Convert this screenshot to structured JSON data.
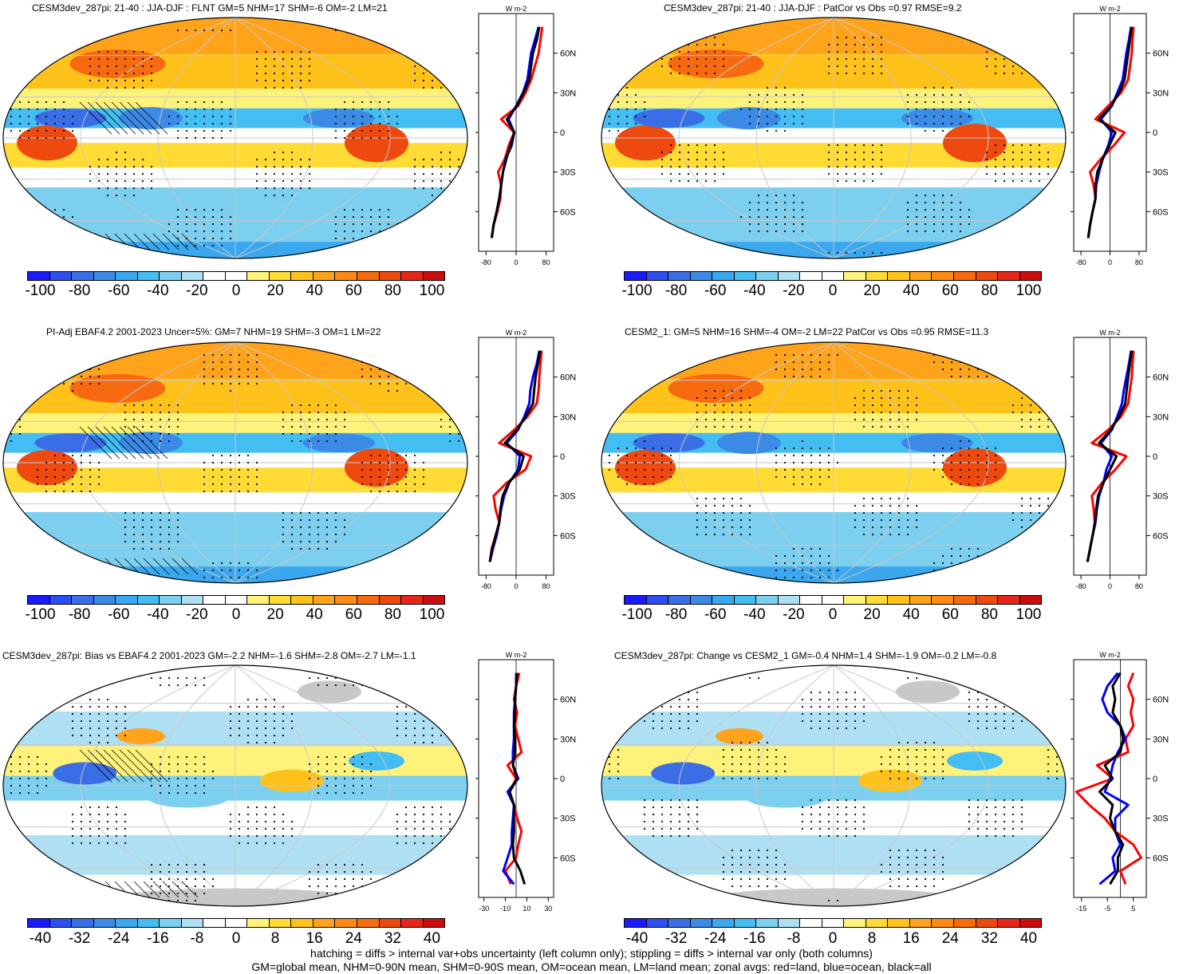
{
  "colors": {
    "diverging_full": [
      "#1a1aff",
      "#2d4ef0",
      "#3a6ee6",
      "#3b8be6",
      "#3aa7ee",
      "#44bdf3",
      "#7ccfee",
      "#aedff2",
      "#ffffff",
      "#ffffff",
      "#fff27a",
      "#ffdb33",
      "#ffc21a",
      "#ffa31a",
      "#ff8a14",
      "#f76a10",
      "#ee4a10",
      "#e6261a",
      "#cc0d0d"
    ],
    "diverging_diff": [
      "#1a1aff",
      "#2d4ef0",
      "#3a6ee6",
      "#3b8be6",
      "#3aa7ee",
      "#44bdf3",
      "#7ccfee",
      "#aedff2",
      "#ffffff",
      "#ffffff",
      "#fff27a",
      "#ffdb33",
      "#ffc21a",
      "#ffa31a",
      "#ff8a14",
      "#f76a10",
      "#ee4a10",
      "#e6261a",
      "#cc0d0d"
    ],
    "land_mask_gray": "#c8c8c8",
    "zonal_land": "#ff0000",
    "zonal_ocean": "#0000ff",
    "zonal_all": "#000000"
  },
  "panels": [
    {
      "id": "p1",
      "title": "CESM3dev_287pi: 21-40 : JJA-DJF : FLNT GM=5 NHM=17 SHM=-6 OM=-2 LM=21",
      "colorbar_labels": [
        "-100",
        "-80",
        "-60",
        "-40",
        "-20",
        "0",
        "20",
        "40",
        "60",
        "80",
        "100"
      ],
      "zonal_unit": "W m-2",
      "zonal_xticks": [
        "-80",
        "0",
        "80"
      ],
      "zonal_yticks": [
        "60N",
        "30N",
        "0",
        "30S",
        "60S"
      ],
      "hatching": true
    },
    {
      "id": "p2",
      "title": "CESM3dev_287pi: 21-40 : JJA-DJF : PatCor vs Obs =0.97 RMSE=9.2",
      "colorbar_labels": [
        "-100",
        "-80",
        "-60",
        "-40",
        "-20",
        "0",
        "20",
        "40",
        "60",
        "80",
        "100"
      ],
      "zonal_unit": "W m-2",
      "zonal_xticks": [
        "-80",
        "0",
        "80"
      ],
      "zonal_yticks": [
        "60N",
        "30N",
        "0",
        "30S",
        "60S"
      ],
      "hatching": false
    },
    {
      "id": "p3",
      "title": "PI-Adj EBAF4.2 2001-2023 Uncer=5%: GM=7 NHM=19 SHM=-3 OM=1 LM=22",
      "colorbar_labels": [
        "-100",
        "-80",
        "-60",
        "-40",
        "-20",
        "0",
        "20",
        "40",
        "60",
        "80",
        "100"
      ],
      "zonal_unit": "W m-2",
      "zonal_xticks": [
        "-80",
        "0",
        "80"
      ],
      "zonal_yticks": [
        "60N",
        "30N",
        "0",
        "30S",
        "60S"
      ],
      "hatching": true
    },
    {
      "id": "p4",
      "title": "CESM2_1: GM=5 NHM=16 SHM=-4 OM=-2 LM=22 PatCor vs Obs =0.95 RMSE=11.3",
      "colorbar_labels": [
        "-100",
        "-80",
        "-60",
        "-40",
        "-20",
        "0",
        "20",
        "40",
        "60",
        "80",
        "100"
      ],
      "zonal_unit": "W m-2",
      "zonal_xticks": [
        "-80",
        "0",
        "80"
      ],
      "zonal_yticks": [
        "60N",
        "30N",
        "0",
        "30S",
        "60S"
      ],
      "hatching": false
    },
    {
      "id": "p5",
      "title": "CESM3dev_287pi: Bias vs EBAF4.2 2001-2023 GM=-2.2 NHM=-1.6 SHM=-2.8 OM=-2.7 LM=-1.1",
      "colorbar_labels": [
        "-40",
        "-32",
        "-24",
        "-16",
        "-8",
        "0",
        "8",
        "16",
        "24",
        "32",
        "40"
      ],
      "zonal_unit": "W m-2",
      "zonal_xticks": [
        "-30",
        "-10",
        "10",
        "30"
      ],
      "zonal_yticks": [
        "60N",
        "30N",
        "0",
        "30S",
        "60S"
      ],
      "hatching": true
    },
    {
      "id": "p6",
      "title": "CESM3dev_287pi: Change vs CESM2_1 GM=-0.4 NHM=1.4 SHM=-1.9 OM=-0.2 LM=-0.8",
      "colorbar_labels": [
        "-40",
        "-32",
        "-24",
        "-16",
        "-8",
        "0",
        "8",
        "16",
        "24",
        "32",
        "40"
      ],
      "zonal_unit": "W m-2",
      "zonal_xticks": [
        "-15",
        "-5",
        "5"
      ],
      "zonal_yticks": [
        "60N",
        "30N",
        "0",
        "30S",
        "60S"
      ],
      "hatching": false
    }
  ],
  "footer": {
    "line1": "hatching = diffs > internal var+obs uncertainty (left column only); stippling = diffs > internal var only (both columns)",
    "line2": "GM=global mean, NHM=0-90N mean, SHM=0-90S mean, OM=ocean mean, LM=land mean; zonal avgs: red=land, blue=ocean, black=all"
  },
  "chart_data": [
    {
      "type": "line",
      "panel": "p1",
      "title": "CESM3dev_287pi: 21-40 : JJA-DJF : FLNT GM=5 NHM=17 SHM=-6 OM=-2 LM=21",
      "ylabel": "",
      "xlabel": "W m-2",
      "xlim": [
        -100,
        100
      ],
      "ylim": [
        -90,
        90
      ],
      "y": [
        -80,
        -70,
        -60,
        -50,
        -40,
        -30,
        -20,
        -10,
        0,
        10,
        20,
        30,
        40,
        50,
        60,
        70,
        80
      ],
      "series": [
        {
          "name": "land",
          "color": "#ff0000",
          "values": [
            -65,
            -60,
            -50,
            -42,
            -40,
            -48,
            -30,
            -20,
            -5,
            -40,
            5,
            25,
            40,
            50,
            60,
            65,
            70
          ]
        },
        {
          "name": "ocean",
          "color": "#0000ff",
          "values": [
            -65,
            -60,
            -52,
            -45,
            -40,
            -35,
            -28,
            -12,
            -5,
            -20,
            0,
            18,
            30,
            35,
            40,
            50,
            60
          ]
        },
        {
          "name": "all",
          "color": "#000000",
          "values": [
            -65,
            -60,
            -52,
            -45,
            -40,
            -35,
            -26,
            -15,
            -5,
            -25,
            2,
            20,
            35,
            40,
            45,
            55,
            62
          ]
        }
      ]
    },
    {
      "type": "line",
      "panel": "p2",
      "title": "CESM3dev_287pi: 21-40 : JJA-DJF : PatCor vs Obs =0.97 RMSE=9.2",
      "ylabel": "",
      "xlabel": "W m-2",
      "xlim": [
        -100,
        100
      ],
      "ylim": [
        -90,
        90
      ],
      "y": [
        -80,
        -70,
        -60,
        -50,
        -40,
        -30,
        -20,
        -10,
        0,
        10,
        20,
        30,
        40,
        50,
        60,
        70,
        80
      ],
      "series": [
        {
          "name": "land",
          "color": "#ff0000",
          "values": [
            -60,
            -55,
            -48,
            -40,
            -45,
            -55,
            -25,
            10,
            40,
            -40,
            -5,
            30,
            50,
            55,
            60,
            62,
            65
          ]
        },
        {
          "name": "ocean",
          "color": "#0000ff",
          "values": [
            -60,
            -55,
            -48,
            -40,
            -38,
            -30,
            -20,
            -5,
            5,
            -25,
            5,
            20,
            35,
            40,
            45,
            52,
            58
          ]
        },
        {
          "name": "all",
          "color": "#000000",
          "values": [
            -60,
            -55,
            -48,
            -40,
            -40,
            -35,
            -20,
            -2,
            15,
            -30,
            3,
            25,
            40,
            45,
            50,
            55,
            60
          ]
        }
      ]
    },
    {
      "type": "line",
      "panel": "p3",
      "title": "PI-Adj EBAF4.2 2001-2023 Uncer=5%: GM=7 NHM=19 SHM=-3 OM=1 LM=22",
      "ylabel": "",
      "xlabel": "W m-2",
      "xlim": [
        -100,
        100
      ],
      "ylim": [
        -90,
        90
      ],
      "y": [
        -80,
        -70,
        -60,
        -50,
        -40,
        -30,
        -20,
        -10,
        0,
        10,
        20,
        30,
        40,
        50,
        60,
        70,
        80
      ],
      "series": [
        {
          "name": "land",
          "color": "#ff0000",
          "values": [
            -70,
            -65,
            -55,
            -45,
            -55,
            -60,
            -25,
            25,
            40,
            -45,
            -5,
            30,
            55,
            60,
            62,
            65,
            68
          ]
        },
        {
          "name": "ocean",
          "color": "#0000ff",
          "values": [
            -70,
            -62,
            -52,
            -45,
            -40,
            -32,
            -18,
            5,
            10,
            -25,
            5,
            22,
            35,
            38,
            45,
            55,
            62
          ]
        },
        {
          "name": "all",
          "color": "#000000",
          "values": [
            -70,
            -64,
            -54,
            -45,
            -42,
            -36,
            -20,
            10,
            20,
            -30,
            2,
            26,
            45,
            48,
            52,
            58,
            64
          ]
        }
      ]
    },
    {
      "type": "line",
      "panel": "p4",
      "title": "CESM2_1: GM=5 NHM=16 SHM=-4 OM=-2 LM=22 PatCor vs Obs =0.95 RMSE=11.3",
      "ylabel": "",
      "xlabel": "W m-2",
      "xlim": [
        -100,
        100
      ],
      "ylim": [
        -90,
        90
      ],
      "y": [
        -80,
        -70,
        -60,
        -50,
        -40,
        -30,
        -20,
        -10,
        0,
        10,
        20,
        30,
        40,
        50,
        60,
        70,
        80
      ],
      "series": [
        {
          "name": "land",
          "color": "#ff0000",
          "values": [
            -62,
            -55,
            -48,
            -42,
            -45,
            -50,
            -22,
            15,
            45,
            -50,
            -5,
            30,
            50,
            55,
            60,
            62,
            65
          ]
        },
        {
          "name": "ocean",
          "color": "#0000ff",
          "values": [
            -62,
            -55,
            -48,
            -40,
            -36,
            -30,
            -18,
            -10,
            5,
            -25,
            5,
            20,
            33,
            38,
            45,
            52,
            58
          ]
        },
        {
          "name": "all",
          "color": "#000000",
          "values": [
            -62,
            -55,
            -48,
            -41,
            -38,
            -33,
            -18,
            0,
            18,
            -30,
            2,
            25,
            42,
            46,
            50,
            55,
            60
          ]
        }
      ]
    },
    {
      "type": "line",
      "panel": "p5",
      "title": "CESM3dev_287pi: Bias vs EBAF4.2 2001-2023 GM=-2.2 NHM=-1.6 SHM=-2.8 OM=-2.7 LM=-1.1",
      "ylabel": "",
      "xlabel": "W m-2",
      "xlim": [
        -35,
        35
      ],
      "ylim": [
        -90,
        90
      ],
      "y": [
        -80,
        -70,
        -60,
        -50,
        -40,
        -30,
        -20,
        -10,
        0,
        10,
        20,
        30,
        40,
        50,
        60,
        70,
        80
      ],
      "series": [
        {
          "name": "land",
          "color": "#ff0000",
          "values": [
            -5,
            -10,
            0,
            2,
            5,
            1,
            -2,
            -6,
            0,
            -8,
            5,
            2,
            -1,
            1,
            -2,
            0,
            3
          ]
        },
        {
          "name": "ocean",
          "color": "#0000ff",
          "values": [
            -2,
            -12,
            -8,
            -4,
            -4,
            -3,
            -2,
            -8,
            2,
            -3,
            -3,
            -2,
            -2,
            -2,
            -1,
            0,
            0
          ]
        },
        {
          "name": "all",
          "color": "#000000",
          "values": [
            8,
            4,
            -2,
            -3,
            -2,
            -2,
            -2,
            -6,
            1,
            -3,
            -1,
            -1,
            -2,
            -1,
            -1,
            0,
            1
          ]
        }
      ]
    },
    {
      "type": "line",
      "panel": "p6",
      "title": "CESM3dev_287pi: Change vs CESM2_1 GM=-0.4 NHM=1.4 SHM=-1.9 OM=-0.2 LM=-0.8",
      "ylabel": "",
      "xlabel": "W m-2",
      "xlim": [
        -18,
        10
      ],
      "ylim": [
        -90,
        90
      ],
      "y": [
        -80,
        -70,
        -60,
        -50,
        -40,
        -30,
        -20,
        -10,
        0,
        10,
        20,
        30,
        40,
        50,
        60,
        70,
        80
      ],
      "series": [
        {
          "name": "land",
          "color": "#ff0000",
          "values": [
            2,
            0,
            8,
            5,
            -2,
            -6,
            -12,
            -17,
            -3,
            -9,
            3,
            2,
            5,
            4,
            5,
            3,
            5
          ]
        },
        {
          "name": "ocean",
          "color": "#0000ff",
          "values": [
            -8,
            -2,
            -3,
            0,
            -2,
            -2,
            3,
            -6,
            -4,
            -3,
            -1,
            2,
            0,
            -5,
            -7,
            -5,
            -1
          ]
        },
        {
          "name": "all",
          "color": "#000000",
          "values": [
            -4,
            -1,
            -1,
            1,
            -2,
            -4,
            -3,
            -8,
            -3,
            -6,
            0,
            1,
            0,
            -3,
            -2,
            -3,
            0
          ]
        }
      ]
    }
  ]
}
